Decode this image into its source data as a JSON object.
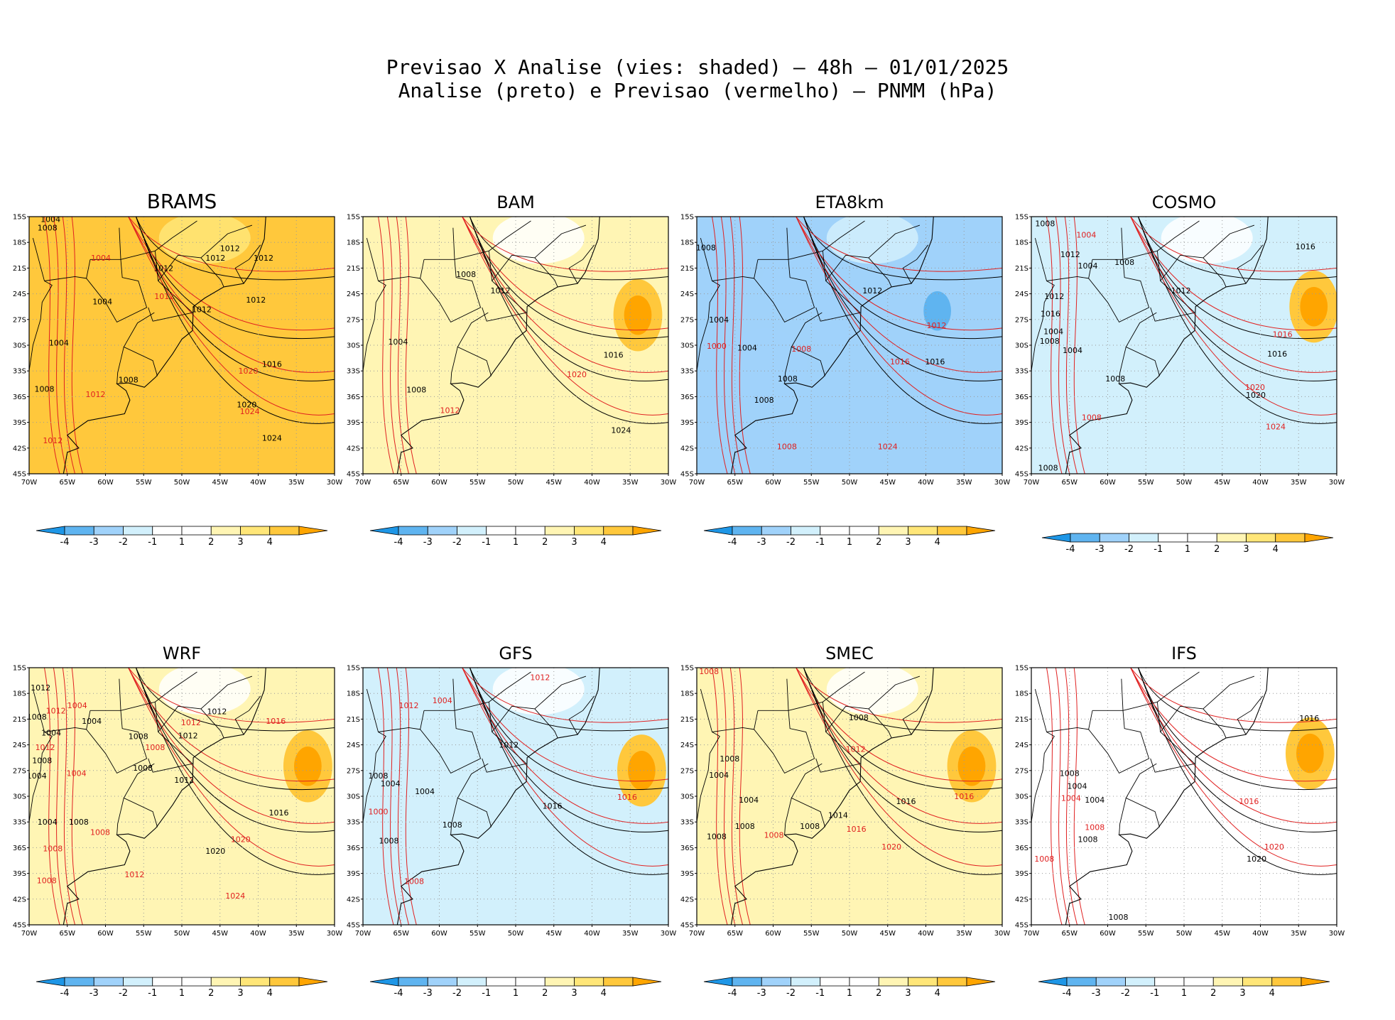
{
  "figure": {
    "title_line1": "Previsao X Analise (vies: shaded) — 48h — 01/01/2025",
    "title_line2": "Analise (preto) e Previsao (vermelho) — PNMM (hPa)"
  },
  "colors": {
    "bias_neg4": "#1e96e6",
    "bias_neg3": "#5fb4f0",
    "bias_neg2": "#a0d2fa",
    "bias_neg1": "#d2f0fc",
    "bias_zero": "#ffffff",
    "bias_pos1": "#fff5b4",
    "bias_pos2": "#ffe678",
    "bias_pos3": "#ffc83c",
    "bias_pos4": "#ffa500",
    "analysis_contour": "#000000",
    "forecast_contour": "#e02020",
    "grid": "#999999"
  },
  "axes": {
    "lat_labels": [
      "15S",
      "18S",
      "21S",
      "24S",
      "27S",
      "30S",
      "33S",
      "36S",
      "39S",
      "42S",
      "45S"
    ],
    "lon_labels": [
      "70W",
      "65W",
      "60W",
      "55W",
      "50W",
      "45W",
      "40W",
      "35W",
      "30W"
    ]
  },
  "colorbar": {
    "labels": [
      "-4",
      "-3",
      "-2",
      "-1",
      "1",
      "2",
      "3",
      "4"
    ]
  },
  "panels": [
    {
      "name": "BRAMS",
      "bias_level": 3,
      "contour_labels": [
        {
          "text": "1004",
          "color": "black",
          "lon": -67.2,
          "lat": -15.3
        },
        {
          "text": "1008",
          "color": "black",
          "lon": -67.6,
          "lat": -16.3
        },
        {
          "text": "1012",
          "color": "black",
          "lon": -43.7,
          "lat": -18.7
        },
        {
          "text": "1012",
          "color": "black",
          "lon": -45.6,
          "lat": -19.8
        },
        {
          "text": "1012",
          "color": "black",
          "lon": -39.3,
          "lat": -19.8
        },
        {
          "text": "1012",
          "color": "black",
          "lon": -52.4,
          "lat": -21.0
        },
        {
          "text": "1004",
          "color": "red",
          "lon": -60.6,
          "lat": -19.8
        },
        {
          "text": "1012",
          "color": "red",
          "lon": -52.3,
          "lat": -24.3
        },
        {
          "text": "1004",
          "color": "black",
          "lon": -60.4,
          "lat": -24.9
        },
        {
          "text": "1012",
          "color": "black",
          "lon": -47.4,
          "lat": -25.8
        },
        {
          "text": "1012",
          "color": "black",
          "lon": -40.3,
          "lat": -24.7
        },
        {
          "text": "1004",
          "color": "black",
          "lon": -66.1,
          "lat": -29.7
        },
        {
          "text": "1016",
          "color": "black",
          "lon": -38.2,
          "lat": -32.2
        },
        {
          "text": "1020",
          "color": "red",
          "lon": -41.3,
          "lat": -33.0
        },
        {
          "text": "1008",
          "color": "black",
          "lon": -57.0,
          "lat": -34.0
        },
        {
          "text": "1008",
          "color": "black",
          "lon": -68.0,
          "lat": -35.1
        },
        {
          "text": "1012",
          "color": "red",
          "lon": -61.3,
          "lat": -35.7
        },
        {
          "text": "1020",
          "color": "black",
          "lon": -41.5,
          "lat": -36.9
        },
        {
          "text": "1024",
          "color": "red",
          "lon": -41.1,
          "lat": -37.7
        },
        {
          "text": "1024",
          "color": "black",
          "lon": -38.2,
          "lat": -40.8
        },
        {
          "text": "1012",
          "color": "red",
          "lon": -66.9,
          "lat": -41.1
        }
      ]
    },
    {
      "name": "BAM",
      "bias_level": 1,
      "contour_labels": [
        {
          "text": "1008",
          "color": "black",
          "lon": -56.5,
          "lat": -21.7
        },
        {
          "text": "1012",
          "color": "black",
          "lon": -52.0,
          "lat": -23.6
        },
        {
          "text": "1004",
          "color": "black",
          "lon": -65.4,
          "lat": -29.6
        },
        {
          "text": "1016",
          "color": "black",
          "lon": -37.2,
          "lat": -31.1
        },
        {
          "text": "1020",
          "color": "red",
          "lon": -42.0,
          "lat": -33.4
        },
        {
          "text": "1008",
          "color": "black",
          "lon": -63.0,
          "lat": -35.2
        },
        {
          "text": "1012",
          "color": "red",
          "lon": -58.6,
          "lat": -37.6
        },
        {
          "text": "1024",
          "color": "black",
          "lon": -36.2,
          "lat": -39.9
        }
      ]
    },
    {
      "name": "ETA8km",
      "bias_level": -2,
      "contour_labels": [
        {
          "text": "1008",
          "color": "black",
          "lon": -68.8,
          "lat": -18.6
        },
        {
          "text": "1012",
          "color": "black",
          "lon": -47.0,
          "lat": -23.6
        },
        {
          "text": "1004",
          "color": "black",
          "lon": -67.1,
          "lat": -27.0
        },
        {
          "text": "1012",
          "color": "red",
          "lon": -38.6,
          "lat": -27.7
        },
        {
          "text": "1000",
          "color": "red",
          "lon": -67.4,
          "lat": -30.1
        },
        {
          "text": "1004",
          "color": "black",
          "lon": -63.4,
          "lat": -30.3
        },
        {
          "text": "1008",
          "color": "red",
          "lon": -56.3,
          "lat": -30.4
        },
        {
          "text": "1016",
          "color": "red",
          "lon": -43.4,
          "lat": -31.9
        },
        {
          "text": "1016",
          "color": "black",
          "lon": -38.8,
          "lat": -31.9
        },
        {
          "text": "1008",
          "color": "black",
          "lon": -58.1,
          "lat": -33.9
        },
        {
          "text": "1008",
          "color": "black",
          "lon": -61.2,
          "lat": -36.4
        },
        {
          "text": "1008",
          "color": "red",
          "lon": -58.2,
          "lat": -41.8
        },
        {
          "text": "1024",
          "color": "red",
          "lon": -45.0,
          "lat": -41.8
        }
      ]
    },
    {
      "name": "COSMO",
      "bias_level": -1,
      "contour_labels": [
        {
          "text": "1008",
          "color": "black",
          "lon": -68.2,
          "lat": -15.8
        },
        {
          "text": "1004",
          "color": "red",
          "lon": -62.8,
          "lat": -17.1
        },
        {
          "text": "1016",
          "color": "black",
          "lon": -34.1,
          "lat": -18.5
        },
        {
          "text": "1012",
          "color": "black",
          "lon": -64.9,
          "lat": -19.4
        },
        {
          "text": "1008",
          "color": "black",
          "lon": -57.8,
          "lat": -20.3
        },
        {
          "text": "1004",
          "color": "black",
          "lon": -62.6,
          "lat": -20.7
        },
        {
          "text": "1012",
          "color": "black",
          "lon": -50.4,
          "lat": -23.6
        },
        {
          "text": "1012",
          "color": "black",
          "lon": -67.0,
          "lat": -24.3
        },
        {
          "text": "1016",
          "color": "black",
          "lon": -67.5,
          "lat": -26.3
        },
        {
          "text": "1004",
          "color": "black",
          "lon": -67.1,
          "lat": -28.4
        },
        {
          "text": "1008",
          "color": "black",
          "lon": -67.6,
          "lat": -29.5
        },
        {
          "text": "1016",
          "color": "red",
          "lon": -37.1,
          "lat": -28.7
        },
        {
          "text": "1004",
          "color": "black",
          "lon": -64.6,
          "lat": -30.6
        },
        {
          "text": "1016",
          "color": "black",
          "lon": -37.8,
          "lat": -31.0
        },
        {
          "text": "1008",
          "color": "black",
          "lon": -59.0,
          "lat": -33.9
        },
        {
          "text": "1020",
          "color": "red",
          "lon": -40.7,
          "lat": -34.9
        },
        {
          "text": "1020",
          "color": "black",
          "lon": -40.6,
          "lat": -35.8
        },
        {
          "text": "1008",
          "color": "red",
          "lon": -62.1,
          "lat": -38.4
        },
        {
          "text": "1024",
          "color": "red",
          "lon": -38.0,
          "lat": -39.5
        },
        {
          "text": "1008",
          "color": "black",
          "lon": -67.8,
          "lat": -44.3
        }
      ]
    },
    {
      "name": "WRF",
      "bias_level": 1,
      "contour_labels": [
        {
          "text": "1012",
          "color": "black",
          "lon": -68.5,
          "lat": -17.3
        },
        {
          "text": "1004",
          "color": "red",
          "lon": -63.7,
          "lat": -19.4
        },
        {
          "text": "1012",
          "color": "red",
          "lon": -66.5,
          "lat": -20.0
        },
        {
          "text": "1008",
          "color": "black",
          "lon": -69.0,
          "lat": -20.7
        },
        {
          "text": "1004",
          "color": "black",
          "lon": -61.8,
          "lat": -21.2
        },
        {
          "text": "1012",
          "color": "black",
          "lon": -45.4,
          "lat": -20.1
        },
        {
          "text": "1012",
          "color": "red",
          "lon": -48.8,
          "lat": -21.4
        },
        {
          "text": "1004",
          "color": "black",
          "lon": -67.1,
          "lat": -22.6
        },
        {
          "text": "1016",
          "color": "red",
          "lon": -37.7,
          "lat": -21.2
        },
        {
          "text": "1008",
          "color": "black",
          "lon": -55.7,
          "lat": -23.0
        },
        {
          "text": "1012",
          "color": "black",
          "lon": -49.2,
          "lat": -22.9
        },
        {
          "text": "1012",
          "color": "red",
          "lon": -67.9,
          "lat": -24.3
        },
        {
          "text": "1008",
          "color": "red",
          "lon": -53.5,
          "lat": -24.3
        },
        {
          "text": "1008",
          "color": "black",
          "lon": -68.3,
          "lat": -25.8
        },
        {
          "text": "1008",
          "color": "black",
          "lon": -55.1,
          "lat": -26.7
        },
        {
          "text": "1004",
          "color": "red",
          "lon": -63.8,
          "lat": -27.3
        },
        {
          "text": "1012",
          "color": "black",
          "lon": -49.7,
          "lat": -28.1
        },
        {
          "text": "1004",
          "color": "black",
          "lon": -69.0,
          "lat": -27.6
        },
        {
          "text": "1016",
          "color": "black",
          "lon": -37.3,
          "lat": -31.9
        },
        {
          "text": "1004",
          "color": "black",
          "lon": -67.6,
          "lat": -33.0
        },
        {
          "text": "1008",
          "color": "black",
          "lon": -63.5,
          "lat": -33.0
        },
        {
          "text": "1008",
          "color": "red",
          "lon": -60.7,
          "lat": -34.2
        },
        {
          "text": "1020",
          "color": "red",
          "lon": -42.3,
          "lat": -35.0
        },
        {
          "text": "1020",
          "color": "black",
          "lon": -45.6,
          "lat": -36.4
        },
        {
          "text": "1008",
          "color": "red",
          "lon": -66.9,
          "lat": -36.1
        },
        {
          "text": "1012",
          "color": "red",
          "lon": -56.2,
          "lat": -39.1
        },
        {
          "text": "1008",
          "color": "red",
          "lon": -67.7,
          "lat": -39.8
        },
        {
          "text": "1024",
          "color": "red",
          "lon": -43.0,
          "lat": -41.6
        }
      ]
    },
    {
      "name": "GFS",
      "bias_level": -1,
      "contour_labels": [
        {
          "text": "1012",
          "color": "red",
          "lon": -46.8,
          "lat": -16.1
        },
        {
          "text": "1012",
          "color": "red",
          "lon": -64.0,
          "lat": -19.4
        },
        {
          "text": "1004",
          "color": "red",
          "lon": -59.6,
          "lat": -18.8
        },
        {
          "text": "1012",
          "color": "black",
          "lon": -50.9,
          "lat": -24.0
        },
        {
          "text": "1008",
          "color": "black",
          "lon": -68.0,
          "lat": -27.6
        },
        {
          "text": "1004",
          "color": "black",
          "lon": -66.4,
          "lat": -28.5
        },
        {
          "text": "1004",
          "color": "black",
          "lon": -61.9,
          "lat": -29.4
        },
        {
          "text": "1016",
          "color": "red",
          "lon": -35.4,
          "lat": -30.1
        },
        {
          "text": "1016",
          "color": "black",
          "lon": -45.2,
          "lat": -31.1
        },
        {
          "text": "1000",
          "color": "red",
          "lon": -68.0,
          "lat": -31.8
        },
        {
          "text": "1008",
          "color": "black",
          "lon": -58.3,
          "lat": -33.3
        },
        {
          "text": "1008",
          "color": "black",
          "lon": -66.6,
          "lat": -35.2
        },
        {
          "text": "1008",
          "color": "red",
          "lon": -63.3,
          "lat": -39.9
        }
      ]
    },
    {
      "name": "SMEC",
      "bias_level": 1,
      "contour_labels": [
        {
          "text": "1008",
          "color": "red",
          "lon": -68.4,
          "lat": -15.4
        },
        {
          "text": "1008",
          "color": "black",
          "lon": -48.8,
          "lat": -20.8
        },
        {
          "text": "1012",
          "color": "red",
          "lon": -49.2,
          "lat": -24.5
        },
        {
          "text": "1008",
          "color": "black",
          "lon": -65.7,
          "lat": -25.6
        },
        {
          "text": "1004",
          "color": "black",
          "lon": -67.1,
          "lat": -27.5
        },
        {
          "text": "1016",
          "color": "red",
          "lon": -35.0,
          "lat": -30.0
        },
        {
          "text": "1004",
          "color": "black",
          "lon": -63.2,
          "lat": -30.4
        },
        {
          "text": "1016",
          "color": "black",
          "lon": -42.6,
          "lat": -30.6
        },
        {
          "text": "1014",
          "color": "black",
          "lon": -51.5,
          "lat": -32.2
        },
        {
          "text": "1008",
          "color": "black",
          "lon": -63.7,
          "lat": -33.5
        },
        {
          "text": "1008",
          "color": "black",
          "lon": -55.2,
          "lat": -33.5
        },
        {
          "text": "1016",
          "color": "red",
          "lon": -49.1,
          "lat": -33.8
        },
        {
          "text": "1008",
          "color": "black",
          "lon": -67.4,
          "lat": -34.7
        },
        {
          "text": "1008",
          "color": "red",
          "lon": -59.9,
          "lat": -34.5
        },
        {
          "text": "1020",
          "color": "red",
          "lon": -44.5,
          "lat": -35.9
        }
      ]
    },
    {
      "name": "IFS",
      "bias_level": 0,
      "contour_labels": [
        {
          "text": "1016",
          "color": "black",
          "lon": -33.6,
          "lat": -20.9
        },
        {
          "text": "1008",
          "color": "black",
          "lon": -65.0,
          "lat": -27.3
        },
        {
          "text": "1004",
          "color": "black",
          "lon": -64.0,
          "lat": -28.8
        },
        {
          "text": "1004",
          "color": "red",
          "lon": -64.8,
          "lat": -30.2
        },
        {
          "text": "1004",
          "color": "black",
          "lon": -61.7,
          "lat": -30.4
        },
        {
          "text": "1016",
          "color": "red",
          "lon": -41.5,
          "lat": -30.6
        },
        {
          "text": "1008",
          "color": "red",
          "lon": -61.7,
          "lat": -33.6
        },
        {
          "text": "1008",
          "color": "black",
          "lon": -62.6,
          "lat": -35.0
        },
        {
          "text": "1020",
          "color": "red",
          "lon": -38.2,
          "lat": -35.9
        },
        {
          "text": "1020",
          "color": "black",
          "lon": -40.5,
          "lat": -37.3
        },
        {
          "text": "1008",
          "color": "red",
          "lon": -68.3,
          "lat": -37.3
        },
        {
          "text": "1008",
          "color": "black",
          "lon": -58.6,
          "lat": -44.1
        }
      ]
    }
  ]
}
